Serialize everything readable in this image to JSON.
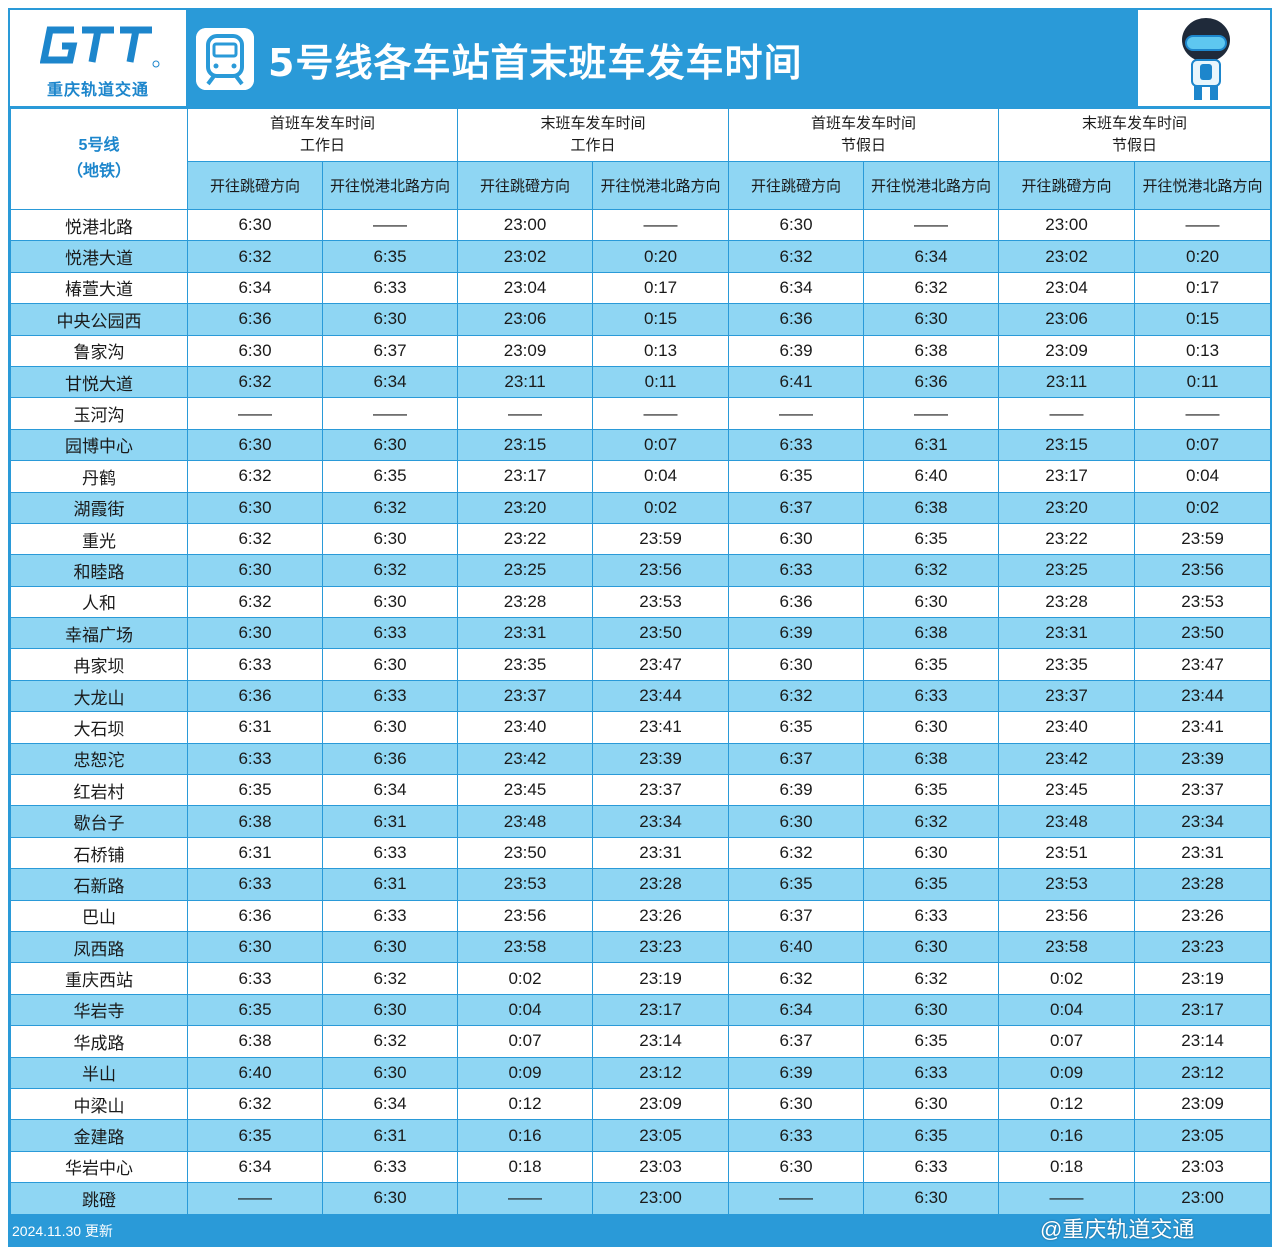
{
  "header": {
    "logo_text": "重庆轨道交通",
    "title": "5号线各车站首末班车发车时间"
  },
  "table": {
    "corner_line1": "5号线",
    "corner_line2": "（地铁）",
    "groups": [
      {
        "line1": "首班车发车时间",
        "line2": "工作日"
      },
      {
        "line1": "末班车发车时间",
        "line2": "工作日"
      },
      {
        "line1": "首班车发车时间",
        "line2": "节假日"
      },
      {
        "line1": "末班车发车时间",
        "line2": "节假日"
      }
    ],
    "directions": [
      "开往跳磴方向",
      "开往悦港北路方向",
      "开往跳磴方向",
      "开往悦港北路方向",
      "开往跳磴方向",
      "开往悦港北路方向",
      "开往跳磴方向",
      "开往悦港北路方向"
    ],
    "rows": [
      [
        "悦港北路",
        "6:30",
        "——",
        "23:00",
        "——",
        "6:30",
        "——",
        "23:00",
        "——"
      ],
      [
        "悦港大道",
        "6:32",
        "6:35",
        "23:02",
        "0:20",
        "6:32",
        "6:34",
        "23:02",
        "0:20"
      ],
      [
        "椿萱大道",
        "6:34",
        "6:33",
        "23:04",
        "0:17",
        "6:34",
        "6:32",
        "23:04",
        "0:17"
      ],
      [
        "中央公园西",
        "6:36",
        "6:30",
        "23:06",
        "0:15",
        "6:36",
        "6:30",
        "23:06",
        "0:15"
      ],
      [
        "鲁家沟",
        "6:30",
        "6:37",
        "23:09",
        "0:13",
        "6:39",
        "6:38",
        "23:09",
        "0:13"
      ],
      [
        "甘悦大道",
        "6:32",
        "6:34",
        "23:11",
        "0:11",
        "6:41",
        "6:36",
        "23:11",
        "0:11"
      ],
      [
        "玉河沟",
        "——",
        "——",
        "——",
        "——",
        "——",
        "——",
        "——",
        "——"
      ],
      [
        "园博中心",
        "6:30",
        "6:30",
        "23:15",
        "0:07",
        "6:33",
        "6:31",
        "23:15",
        "0:07"
      ],
      [
        "丹鹤",
        "6:32",
        "6:35",
        "23:17",
        "0:04",
        "6:35",
        "6:40",
        "23:17",
        "0:04"
      ],
      [
        "湖霞街",
        "6:30",
        "6:32",
        "23:20",
        "0:02",
        "6:37",
        "6:38",
        "23:20",
        "0:02"
      ],
      [
        "重光",
        "6:32",
        "6:30",
        "23:22",
        "23:59",
        "6:30",
        "6:35",
        "23:22",
        "23:59"
      ],
      [
        "和睦路",
        "6:30",
        "6:32",
        "23:25",
        "23:56",
        "6:33",
        "6:32",
        "23:25",
        "23:56"
      ],
      [
        "人和",
        "6:32",
        "6:30",
        "23:28",
        "23:53",
        "6:36",
        "6:30",
        "23:28",
        "23:53"
      ],
      [
        "幸福广场",
        "6:30",
        "6:33",
        "23:31",
        "23:50",
        "6:39",
        "6:38",
        "23:31",
        "23:50"
      ],
      [
        "冉家坝",
        "6:33",
        "6:30",
        "23:35",
        "23:47",
        "6:30",
        "6:35",
        "23:35",
        "23:47"
      ],
      [
        "大龙山",
        "6:36",
        "6:33",
        "23:37",
        "23:44",
        "6:32",
        "6:33",
        "23:37",
        "23:44"
      ],
      [
        "大石坝",
        "6:31",
        "6:30",
        "23:40",
        "23:41",
        "6:35",
        "6:30",
        "23:40",
        "23:41"
      ],
      [
        "忠恕沱",
        "6:33",
        "6:36",
        "23:42",
        "23:39",
        "6:37",
        "6:38",
        "23:42",
        "23:39"
      ],
      [
        "红岩村",
        "6:35",
        "6:34",
        "23:45",
        "23:37",
        "6:39",
        "6:35",
        "23:45",
        "23:37"
      ],
      [
        "歇台子",
        "6:38",
        "6:31",
        "23:48",
        "23:34",
        "6:30",
        "6:32",
        "23:48",
        "23:34"
      ],
      [
        "石桥铺",
        "6:31",
        "6:33",
        "23:50",
        "23:31",
        "6:32",
        "6:30",
        "23:51",
        "23:31"
      ],
      [
        "石新路",
        "6:33",
        "6:31",
        "23:53",
        "23:28",
        "6:35",
        "6:35",
        "23:53",
        "23:28"
      ],
      [
        "巴山",
        "6:36",
        "6:33",
        "23:56",
        "23:26",
        "6:37",
        "6:33",
        "23:56",
        "23:26"
      ],
      [
        "凤西路",
        "6:30",
        "6:30",
        "23:58",
        "23:23",
        "6:40",
        "6:30",
        "23:58",
        "23:23"
      ],
      [
        "重庆西站",
        "6:33",
        "6:32",
        "0:02",
        "23:19",
        "6:32",
        "6:32",
        "0:02",
        "23:19"
      ],
      [
        "华岩寺",
        "6:35",
        "6:30",
        "0:04",
        "23:17",
        "6:34",
        "6:30",
        "0:04",
        "23:17"
      ],
      [
        "华成路",
        "6:38",
        "6:32",
        "0:07",
        "23:14",
        "6:37",
        "6:35",
        "0:07",
        "23:14"
      ],
      [
        "半山",
        "6:40",
        "6:30",
        "0:09",
        "23:12",
        "6:39",
        "6:33",
        "0:09",
        "23:12"
      ],
      [
        "中梁山",
        "6:32",
        "6:34",
        "0:12",
        "23:09",
        "6:30",
        "6:30",
        "0:12",
        "23:09"
      ],
      [
        "金建路",
        "6:35",
        "6:31",
        "0:16",
        "23:05",
        "6:33",
        "6:35",
        "0:16",
        "23:05"
      ],
      [
        "华岩中心",
        "6:34",
        "6:33",
        "0:18",
        "23:03",
        "6:30",
        "6:33",
        "0:18",
        "23:03"
      ],
      [
        "跳磴",
        "——",
        "6:30",
        "——",
        "23:00",
        "——",
        "6:30",
        "——",
        "23:00"
      ]
    ]
  },
  "footer": {
    "updated": "2024.11.30 更新",
    "watermark": "@重庆轨道交通"
  },
  "colors": {
    "brand_blue": "#2a9ad8",
    "row_alt": "#8fd6f3",
    "row_plain": "#ffffff"
  },
  "icons": [
    "metro-logo-icon",
    "train-front-icon",
    "mascot-icon"
  ]
}
